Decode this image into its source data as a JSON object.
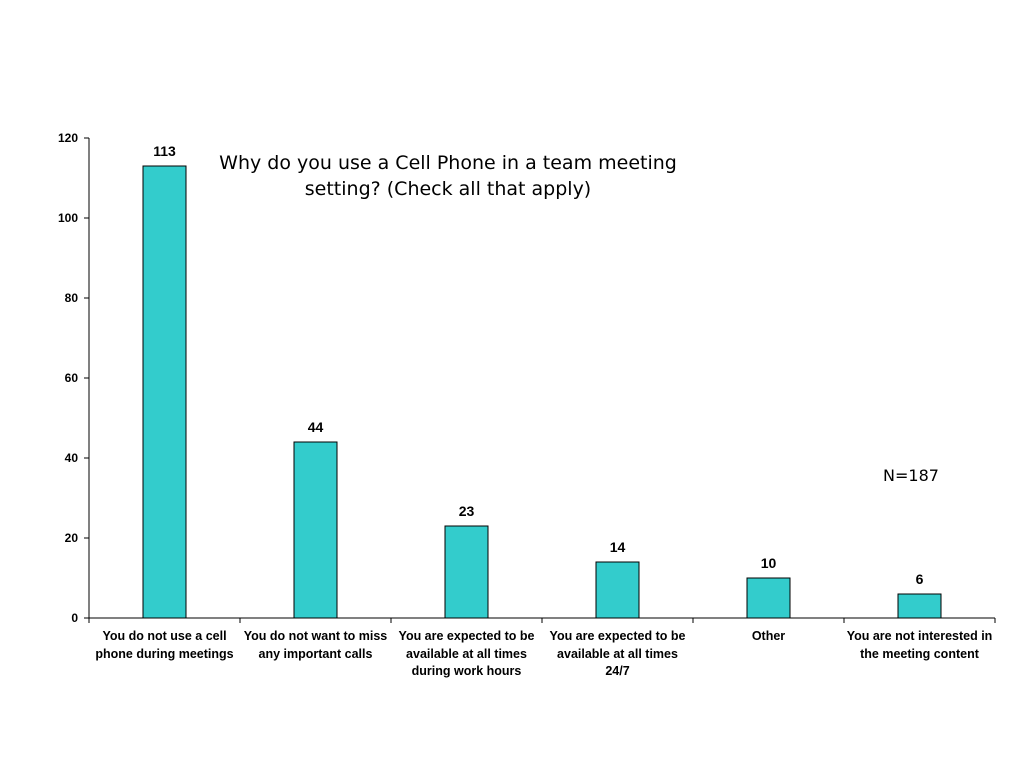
{
  "chart_data": {
    "type": "bar",
    "title": "Why do you use a Cell Phone in a team meeting setting?  (Check all that apply)",
    "annotation": "N=187",
    "categories": [
      "You do not use a cell phone during meetings",
      "You do not want to miss any important calls",
      "You are expected to be available at all times during work hours",
      "You are expected to be available at all times 24/7",
      "Other",
      "You are not interested in the meeting content"
    ],
    "values": [
      113,
      44,
      23,
      14,
      10,
      6
    ],
    "data_labels": [
      "113",
      "44",
      "23",
      "14",
      "10",
      "6"
    ],
    "yticks": [
      "0",
      "20",
      "40",
      "60",
      "80",
      "100",
      "120"
    ],
    "ylim": [
      0,
      120
    ],
    "ystep": 20,
    "grid": false,
    "legend": "none",
    "bar_color": "#33CCCC",
    "bar_border_color": "#000000",
    "xlabel": "",
    "ylabel": ""
  }
}
